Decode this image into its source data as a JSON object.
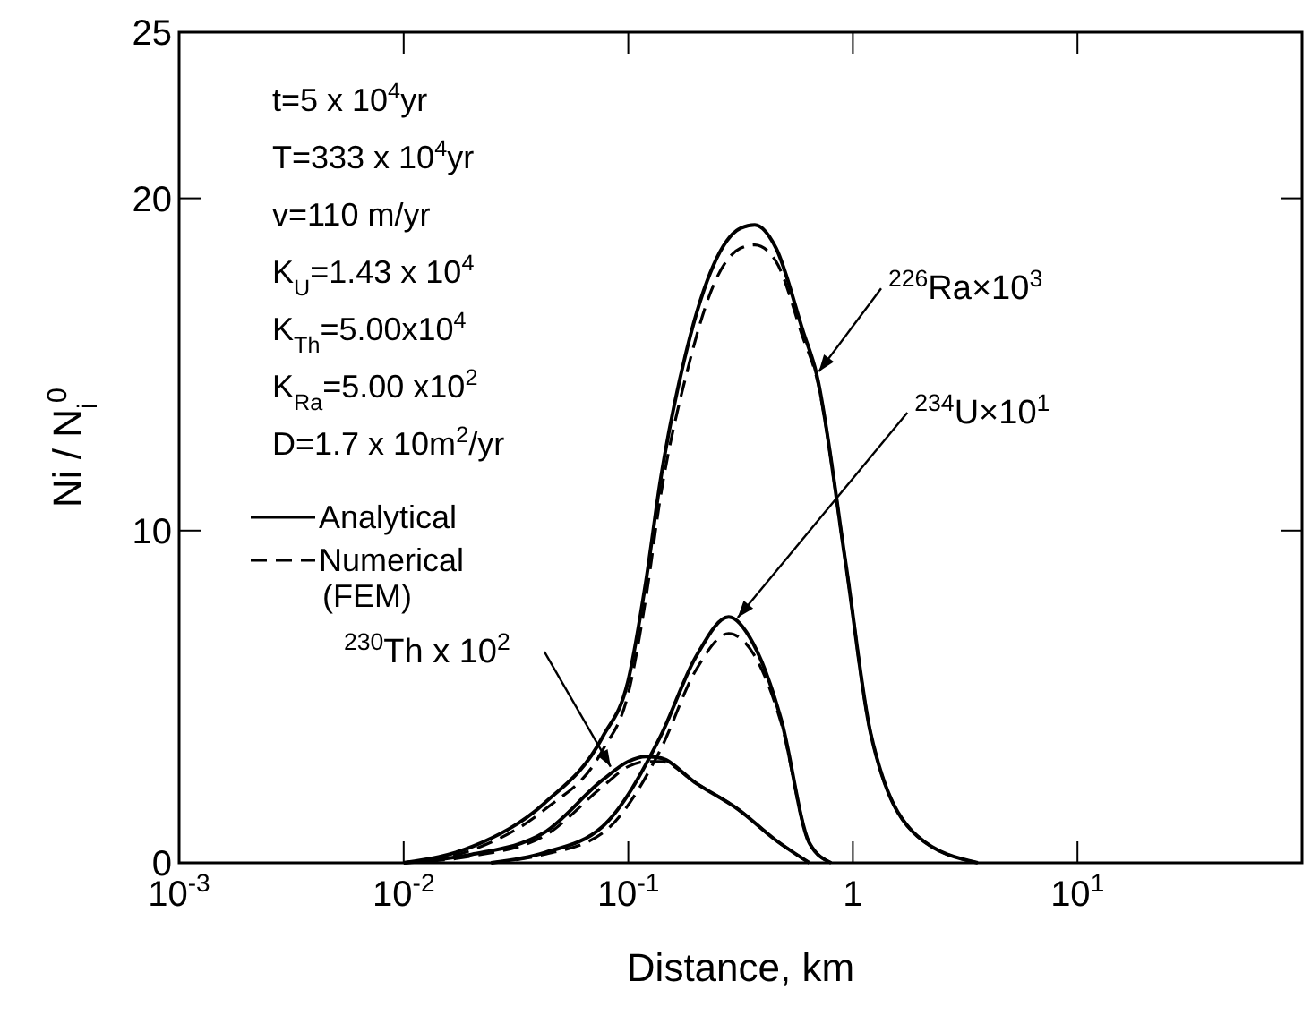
{
  "chart_data": {
    "type": "line",
    "xlabel": "Distance, km",
    "ylabel": "Ni / N$_{i}$$^{0}$",
    "log": "x",
    "xlim": [
      0.001,
      100
    ],
    "xticks": [
      {
        "value": 0.001,
        "label": "10$^{-3}$"
      },
      {
        "value": 0.01,
        "label": "10$^{-2}$"
      },
      {
        "value": 0.1,
        "label": "10$^{-1}$"
      },
      1,
      {
        "value": 10,
        "label": "10$^{1}$"
      },
      {
        "value": 100,
        "label": null
      }
    ],
    "ylim": [
      0,
      25
    ],
    "yticks": [
      0,
      10,
      20,
      25
    ],
    "grid": false,
    "legend": "left",
    "marker": "none",
    "series": [
      {
        "name": "Analytical",
        "color": "#000000",
        "line_style": "solid",
        "x": [
          0.01,
          0.0204,
          0.0424,
          0.077,
          0.1,
          0.12,
          0.139,
          0.183,
          0.24,
          0.316,
          0.366,
          0.455,
          0.6,
          0.69,
          0.93,
          1.2,
          1.94,
          3.6
        ],
        "values": [
          0,
          0.5,
          1.8,
          3.8,
          5.5,
          8.5,
          11.5,
          15.5,
          18,
          19.1,
          19.2,
          18.5,
          16,
          14.7,
          9,
          3.9,
          0.8,
          0
        ]
      },
      {
        "name": "Numerical (FEM)",
        "color": "#000000",
        "line_style": "dashed",
        "x": [
          0.01,
          0.0204,
          0.0424,
          0.077,
          0.1,
          0.12,
          0.139,
          0.183,
          0.24,
          0.316,
          0.366,
          0.455,
          0.6,
          0.69,
          0.93,
          1.2,
          1.94,
          3.6
        ],
        "values": [
          0,
          0.4,
          1.6,
          3.4,
          5.1,
          8,
          11,
          14.8,
          17.4,
          18.5,
          18.6,
          18.1,
          15.8,
          14.6,
          9,
          3.9,
          0.8,
          0
        ]
      },
      {
        "color": "#000000",
        "line_style": "solid",
        "x": [
          0.0245,
          0.042,
          0.077,
          0.139,
          0.2,
          0.28,
          0.36,
          0.48,
          0.64,
          0.8
        ],
        "values": [
          0,
          0.3,
          1.1,
          3.8,
          6.2,
          7.4,
          6.6,
          4.3,
          0.6,
          0
        ]
      },
      {
        "color": "#000000",
        "line_style": "dashed",
        "x": [
          0.0245,
          0.042,
          0.077,
          0.139,
          0.2,
          0.28,
          0.36,
          0.48,
          0.64,
          0.8
        ],
        "values": [
          0,
          0.25,
          0.9,
          3.4,
          5.8,
          6.9,
          6.3,
          4.2,
          0.6,
          0
        ]
      },
      {
        "color": "#000000",
        "line_style": "solid",
        "x": [
          0.01,
          0.02,
          0.042,
          0.077,
          0.1,
          0.12,
          0.14,
          0.2,
          0.31,
          0.45,
          0.64
        ],
        "values": [
          0,
          0.25,
          0.9,
          2.5,
          3.05,
          3.2,
          3.15,
          2.4,
          1.6,
          0.7,
          0
        ]
      },
      {
        "color": "#000000",
        "line_style": "dashed",
        "x": [
          0.01,
          0.02,
          0.042,
          0.077,
          0.1,
          0.12,
          0.14,
          0.2,
          0.31,
          0.45,
          0.64
        ],
        "values": [
          0,
          0.2,
          0.8,
          2.3,
          2.9,
          3.05,
          3.05,
          2.4,
          1.6,
          0.7,
          0
        ]
      }
    ],
    "annotations": [
      "t=5 x 10$^{4}$yr",
      "T=333 x 10$^{4}$yr",
      "v=110 m/yr",
      "K$_{U}$=1.43 x 10$^{4}$",
      "K$_{Th}$=5.00x10$^{4}$",
      "K$_{Ra}$=5.00 x10$^{2}$",
      "D=1.7 x 10m$^{2}$/yr",
      {
        "text": "$^{226}$Ra×10$^{3}$",
        "x": 0.69,
        "y": 14.7
      },
      {
        "text": "$^{234}$U×10$^{1}$",
        "x": 0.3,
        "y": 7.3
      },
      {
        "text": "$^{230}$Th x 10$^{2}$",
        "x": 0.085,
        "y": 2.8
      }
    ]
  }
}
